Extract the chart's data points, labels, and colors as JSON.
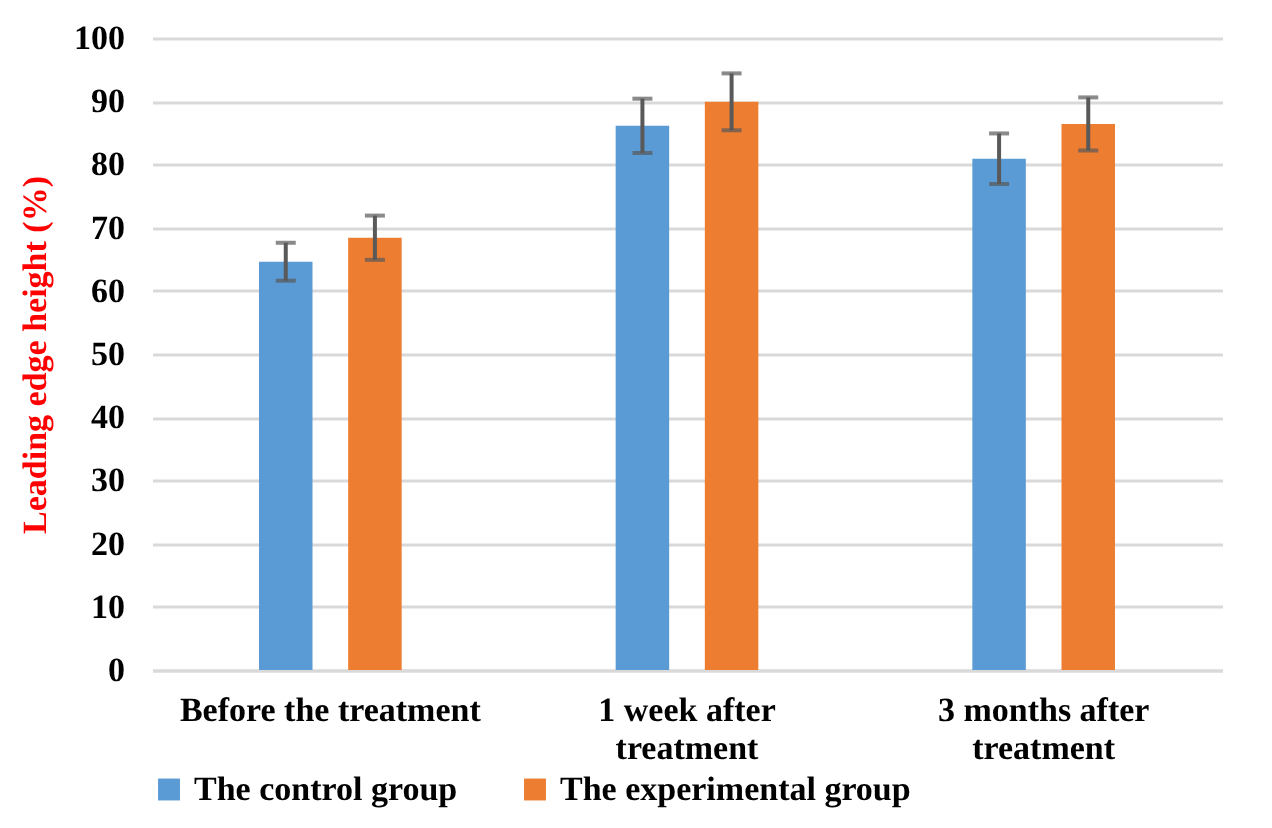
{
  "chart_data": {
    "type": "bar",
    "ylabel": "Leading edge height (%)",
    "categories": [
      "Before the treatment",
      "1 week after treatment",
      "3 months after treatment"
    ],
    "series": [
      {
        "name": "The control group",
        "color": "#5b9bd5",
        "values": [
          64.6,
          86.1,
          80.9
        ],
        "errors": [
          3.0,
          4.3,
          4.0
        ]
      },
      {
        "name": "The experimental group",
        "color": "#ed7d31",
        "values": [
          68.4,
          89.9,
          86.4
        ],
        "errors": [
          3.5,
          4.5,
          4.2
        ]
      }
    ],
    "ylim": [
      0,
      100
    ],
    "yticks": [
      0,
      10,
      20,
      30,
      40,
      50,
      60,
      70,
      80,
      90,
      100
    ],
    "grid": "y",
    "legend": "bottom"
  }
}
